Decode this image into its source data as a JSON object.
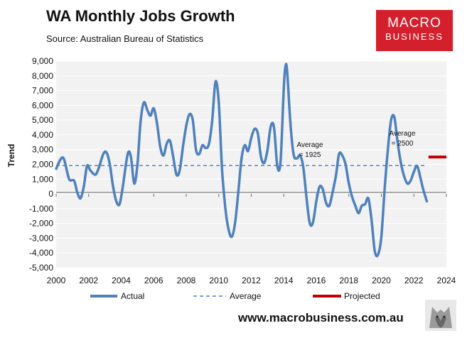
{
  "header": {
    "title": "WA Monthly Jobs Growth",
    "subtitle": "Source: Australian Bureau of Statistics"
  },
  "logo": {
    "line1": "MACRO",
    "line2": "BUSINESS"
  },
  "footer": {
    "url": "www.macrobusiness.com.au"
  },
  "colors": {
    "actual": "#4f81bd",
    "average": "#4f81bd",
    "projected": "#c00000",
    "plot_bg": "#f2f2f2",
    "logo_bg": "#d4202c"
  },
  "chart_data": {
    "type": "line",
    "title": "WA Monthly Jobs Growth",
    "ylabel": "Trend",
    "xlabel": "",
    "xlim": [
      2000,
      2024
    ],
    "ylim": [
      -5000,
      9000
    ],
    "x_ticks": [
      "2000",
      "2002",
      "2004",
      "2006",
      "2008",
      "2010",
      "2012",
      "2014",
      "2016",
      "2018",
      "2020",
      "2022",
      "2024"
    ],
    "y_ticks": [
      "9,000",
      "8,000",
      "7,000",
      "6,000",
      "5,000",
      "4,000",
      "3,000",
      "2,000",
      "1,000",
      "0",
      "-1,000",
      "-2,000",
      "-3,000",
      "-4,000",
      "-5,000"
    ],
    "series": [
      {
        "name": "Actual",
        "style": "solid",
        "points": [
          [
            2000.0,
            1700
          ],
          [
            2000.3,
            2400
          ],
          [
            2000.5,
            2300
          ],
          [
            2000.8,
            1000
          ],
          [
            2001.1,
            900
          ],
          [
            2001.3,
            100
          ],
          [
            2001.5,
            -300
          ],
          [
            2001.7,
            500
          ],
          [
            2001.9,
            1900
          ],
          [
            2002.1,
            1600
          ],
          [
            2002.4,
            1300
          ],
          [
            2002.6,
            1700
          ],
          [
            2002.9,
            2700
          ],
          [
            2003.1,
            2800
          ],
          [
            2003.3,
            2000
          ],
          [
            2003.5,
            500
          ],
          [
            2003.7,
            -500
          ],
          [
            2003.9,
            -700
          ],
          [
            2004.1,
            500
          ],
          [
            2004.4,
            2700
          ],
          [
            2004.6,
            2500
          ],
          [
            2004.8,
            700
          ],
          [
            2005.0,
            2000
          ],
          [
            2005.2,
            5000
          ],
          [
            2005.4,
            6200
          ],
          [
            2005.6,
            5700
          ],
          [
            2005.8,
            5300
          ],
          [
            2006.0,
            5800
          ],
          [
            2006.2,
            4800
          ],
          [
            2006.4,
            3200
          ],
          [
            2006.6,
            2600
          ],
          [
            2006.8,
            3400
          ],
          [
            2007.0,
            3600
          ],
          [
            2007.2,
            2500
          ],
          [
            2007.4,
            1300
          ],
          [
            2007.6,
            1600
          ],
          [
            2007.8,
            3200
          ],
          [
            2008.0,
            4600
          ],
          [
            2008.2,
            5400
          ],
          [
            2008.4,
            5000
          ],
          [
            2008.6,
            3000
          ],
          [
            2008.8,
            2700
          ],
          [
            2009.0,
            3300
          ],
          [
            2009.2,
            3100
          ],
          [
            2009.4,
            3400
          ],
          [
            2009.6,
            5000
          ],
          [
            2009.8,
            7600
          ],
          [
            2010.0,
            6200
          ],
          [
            2010.2,
            1700
          ],
          [
            2010.4,
            -900
          ],
          [
            2010.6,
            -2400
          ],
          [
            2010.8,
            -2900
          ],
          [
            2011.0,
            -2000
          ],
          [
            2011.2,
            100
          ],
          [
            2011.4,
            2400
          ],
          [
            2011.6,
            3300
          ],
          [
            2011.8,
            2900
          ],
          [
            2012.0,
            3800
          ],
          [
            2012.2,
            4400
          ],
          [
            2012.4,
            4100
          ],
          [
            2012.6,
            2500
          ],
          [
            2012.8,
            2100
          ],
          [
            2013.0,
            3000
          ],
          [
            2013.2,
            4600
          ],
          [
            2013.4,
            4500
          ],
          [
            2013.6,
            1900
          ],
          [
            2013.8,
            2200
          ],
          [
            2014.0,
            7200
          ],
          [
            2014.1,
            8600
          ],
          [
            2014.2,
            8400
          ],
          [
            2014.4,
            4900
          ],
          [
            2014.6,
            2700
          ],
          [
            2014.8,
            2400
          ],
          [
            2015.0,
            2600
          ],
          [
            2015.2,
            1800
          ],
          [
            2015.4,
            -300
          ],
          [
            2015.6,
            -2000
          ],
          [
            2015.8,
            -1900
          ],
          [
            2016.0,
            -500
          ],
          [
            2016.2,
            500
          ],
          [
            2016.4,
            300
          ],
          [
            2016.6,
            -600
          ],
          [
            2016.8,
            -800
          ],
          [
            2017.0,
            100
          ],
          [
            2017.2,
            1200
          ],
          [
            2017.4,
            2700
          ],
          [
            2017.6,
            2600
          ],
          [
            2017.8,
            2000
          ],
          [
            2018.0,
            700
          ],
          [
            2018.2,
            -200
          ],
          [
            2018.4,
            -800
          ],
          [
            2018.6,
            -1300
          ],
          [
            2018.8,
            -800
          ],
          [
            2019.0,
            -700
          ],
          [
            2019.2,
            -300
          ],
          [
            2019.4,
            -1800
          ],
          [
            2019.6,
            -3900
          ],
          [
            2019.8,
            -4100
          ],
          [
            2020.0,
            -2900
          ],
          [
            2020.2,
            300
          ],
          [
            2020.4,
            3000
          ],
          [
            2020.6,
            5000
          ],
          [
            2020.8,
            5200
          ],
          [
            2021.0,
            3500
          ],
          [
            2021.2,
            2100
          ],
          [
            2021.4,
            1200
          ],
          [
            2021.6,
            700
          ],
          [
            2021.8,
            900
          ],
          [
            2022.0,
            1500
          ],
          [
            2022.2,
            1900
          ],
          [
            2022.4,
            1100
          ],
          [
            2022.6,
            200
          ],
          [
            2022.8,
            -500
          ]
        ]
      },
      {
        "name": "Average",
        "style": "dashed",
        "value": 1925,
        "x_range": [
          2000,
          2022.8
        ]
      },
      {
        "name": "Projected",
        "style": "solid-thick",
        "value": 2500,
        "x_range": [
          2022.9,
          2024
        ]
      }
    ],
    "annotations": [
      {
        "line1": "Average",
        "line2": "= 1925"
      },
      {
        "line1": "Average",
        "line2": "= 2500"
      }
    ],
    "legend": [
      "Actual",
      "Average",
      "Projected"
    ],
    "legend_position": "bottom"
  }
}
